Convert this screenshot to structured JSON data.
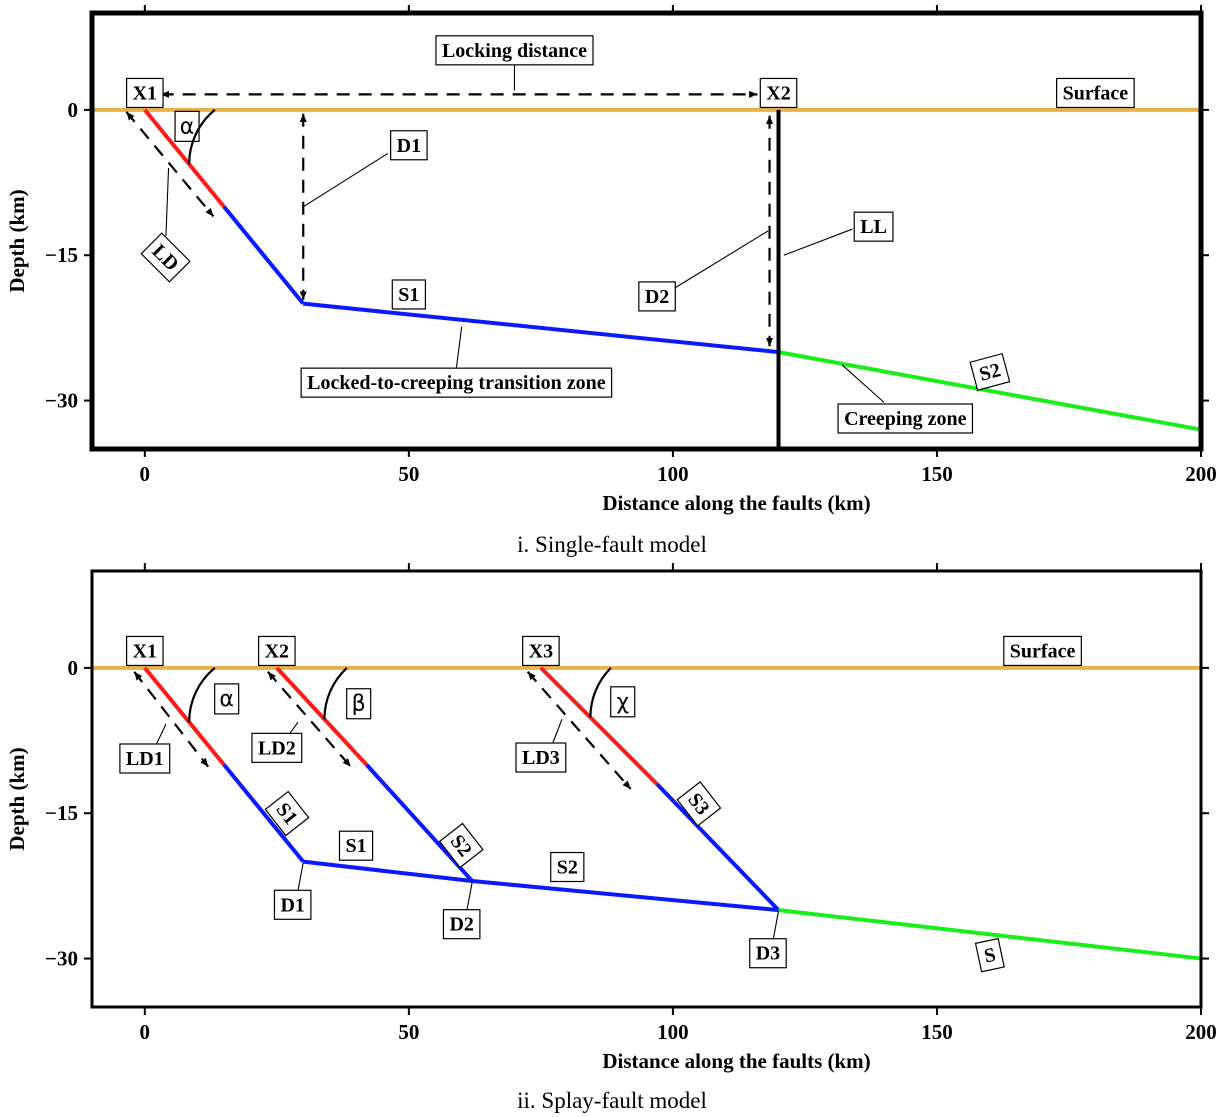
{
  "colors": {
    "surface": "#e8b24a",
    "locked": "#ff1a1a",
    "transition": "#0a1aff",
    "creeping": "#1aee1a",
    "frame": "#000000"
  },
  "panels": [
    {
      "id": "single",
      "caption": "i. Single-fault model",
      "xlabel": "Distance along the faults (km)",
      "ylabel": "Depth (km)",
      "xlim": [
        -10,
        200
      ],
      "ylim": [
        -35,
        10
      ],
      "x_ticks": [
        0,
        50,
        100,
        150,
        200
      ],
      "y_ticks": [
        0,
        -15,
        -30
      ],
      "x_tick_labels": [
        "0",
        "50",
        "100",
        "150",
        "200"
      ],
      "y_tick_labels": [
        "0",
        "−15",
        "−30"
      ],
      "segments": [
        {
          "id": "surface",
          "color": "surface",
          "points": [
            [
              -10,
              0
            ],
            [
              200,
              0
            ]
          ]
        },
        {
          "id": "locked-ramp",
          "color": "locked",
          "points": [
            [
              0,
              0
            ],
            [
              15,
              -10
            ]
          ]
        },
        {
          "id": "ramp-lower",
          "color": "transition",
          "points": [
            [
              15,
              -10
            ],
            [
              30,
              -20
            ]
          ]
        },
        {
          "id": "s1-flat",
          "color": "transition",
          "points": [
            [
              30,
              -20
            ],
            [
              120,
              -25
            ]
          ]
        },
        {
          "id": "s2-creep",
          "color": "creeping",
          "points": [
            [
              120,
              -25
            ],
            [
              200,
              -33
            ]
          ]
        },
        {
          "id": "locking-line",
          "color": "frame",
          "points": [
            [
              120,
              0
            ],
            [
              120,
              -35
            ]
          ],
          "width": 4
        }
      ],
      "labels": [
        {
          "id": "x1",
          "text": "X1",
          "at": [
            0,
            1.8
          ]
        },
        {
          "id": "x2",
          "text": "X2",
          "at": [
            120,
            1.8
          ]
        },
        {
          "id": "locking-distance",
          "text": "Locking distance",
          "at": [
            70,
            6.2
          ]
        },
        {
          "id": "surface-label",
          "text": "Surface",
          "at": [
            180,
            1.8
          ]
        },
        {
          "id": "d1",
          "text": "D1",
          "at": [
            50,
            -3.6
          ]
        },
        {
          "id": "ld",
          "text": "LD",
          "at": [
            4,
            -15.2
          ],
          "rotate": 45
        },
        {
          "id": "ll",
          "text": "LL",
          "at": [
            138,
            -12
          ]
        },
        {
          "id": "d2",
          "text": "D2",
          "at": [
            97,
            -19.2
          ]
        },
        {
          "id": "s1",
          "text": "S1",
          "at": [
            50,
            -19
          ]
        },
        {
          "id": "transition-label",
          "text": "Locked-to-creeping transition zone",
          "at": [
            59,
            -28.1
          ]
        },
        {
          "id": "s2",
          "text": "S2",
          "at": [
            160,
            -27
          ],
          "rotate": -15
        },
        {
          "id": "creeping-label",
          "text": "Creeping zone",
          "at": [
            144,
            -31.8
          ]
        }
      ],
      "angles": [
        {
          "id": "alpha",
          "text": "α",
          "vertex": [
            0,
            0
          ],
          "label_at": [
            8,
            -1.7
          ]
        }
      ]
    },
    {
      "id": "splay",
      "caption": "ii. Splay-fault model",
      "xlabel": "Distance along the faults (km)",
      "ylabel": "Depth (km)",
      "xlim": [
        -10,
        200
      ],
      "ylim": [
        -35,
        10
      ],
      "x_ticks": [
        0,
        50,
        100,
        150,
        200
      ],
      "y_ticks": [
        0,
        -15,
        -30
      ],
      "x_tick_labels": [
        "0",
        "50",
        "100",
        "150",
        "200"
      ],
      "y_tick_labels": [
        "0",
        "−15",
        "−30"
      ],
      "segments": [
        {
          "id": "surface",
          "color": "surface",
          "points": [
            [
              -10,
              0
            ],
            [
              200,
              0
            ]
          ]
        },
        {
          "id": "f1-locked",
          "color": "locked",
          "points": [
            [
              0,
              0
            ],
            [
              15,
              -10
            ]
          ]
        },
        {
          "id": "f1-lower",
          "color": "transition",
          "points": [
            [
              15,
              -10
            ],
            [
              30,
              -20
            ]
          ]
        },
        {
          "id": "f2-locked",
          "color": "locked",
          "points": [
            [
              25,
              0
            ],
            [
              42,
              -10
            ]
          ]
        },
        {
          "id": "f2-lower",
          "color": "transition",
          "points": [
            [
              42,
              -10
            ],
            [
              62,
              -22
            ]
          ]
        },
        {
          "id": "f3-locked",
          "color": "locked",
          "points": [
            [
              75,
              0
            ],
            [
              97,
              -12
            ]
          ]
        },
        {
          "id": "f3-lower",
          "color": "transition",
          "points": [
            [
              97,
              -12
            ],
            [
              120,
              -25
            ]
          ]
        },
        {
          "id": "s1-flat",
          "color": "transition",
          "points": [
            [
              30,
              -20
            ],
            [
              62,
              -22
            ]
          ]
        },
        {
          "id": "s2-flat",
          "color": "transition",
          "points": [
            [
              62,
              -22
            ],
            [
              120,
              -25
            ]
          ]
        },
        {
          "id": "s-creep",
          "color": "creeping",
          "points": [
            [
              120,
              -25
            ],
            [
              200,
              -30
            ]
          ]
        }
      ],
      "labels": [
        {
          "id": "x1",
          "text": "X1",
          "at": [
            0,
            1.8
          ]
        },
        {
          "id": "x2",
          "text": "X2",
          "at": [
            25,
            1.8
          ]
        },
        {
          "id": "x3",
          "text": "X3",
          "at": [
            75,
            1.8
          ]
        },
        {
          "id": "surface-label",
          "text": "Surface",
          "at": [
            170,
            1.8
          ]
        },
        {
          "id": "ld1",
          "text": "LD1",
          "at": [
            0,
            -9.3
          ]
        },
        {
          "id": "ld2",
          "text": "LD2",
          "at": [
            25,
            -8.2
          ]
        },
        {
          "id": "ld3",
          "text": "LD3",
          "at": [
            75,
            -9.2
          ]
        },
        {
          "id": "s1-splay",
          "text": "S1",
          "at": [
            27,
            -15
          ],
          "rotate": 52
        },
        {
          "id": "s1-flat",
          "text": "S1",
          "at": [
            40,
            -18.3
          ]
        },
        {
          "id": "s2-splay",
          "text": "S2",
          "at": [
            60,
            -18.3
          ],
          "rotate": 52
        },
        {
          "id": "s2-flat",
          "text": "S2",
          "at": [
            80,
            -20.5
          ]
        },
        {
          "id": "s3-splay",
          "text": "S3",
          "at": [
            105,
            -14
          ],
          "rotate": 52
        },
        {
          "id": "d1",
          "text": "D1",
          "at": [
            28,
            -24.4
          ]
        },
        {
          "id": "d2",
          "text": "D2",
          "at": [
            60,
            -26.4
          ]
        },
        {
          "id": "d3",
          "text": "D3",
          "at": [
            118,
            -29.4
          ]
        },
        {
          "id": "s",
          "text": "S",
          "at": [
            160,
            -29.6
          ],
          "rotate": -12
        }
      ],
      "angles": [
        {
          "id": "alpha",
          "text": "α",
          "vertex": [
            0,
            0
          ],
          "label_at": [
            15.5,
            -3.2
          ]
        },
        {
          "id": "beta",
          "text": "β",
          "vertex": [
            25,
            0
          ],
          "label_at": [
            40.5,
            -3.7
          ]
        },
        {
          "id": "chi",
          "text": "χ",
          "vertex": [
            75,
            0
          ],
          "label_at": [
            90.5,
            -3.5
          ]
        }
      ]
    }
  ]
}
